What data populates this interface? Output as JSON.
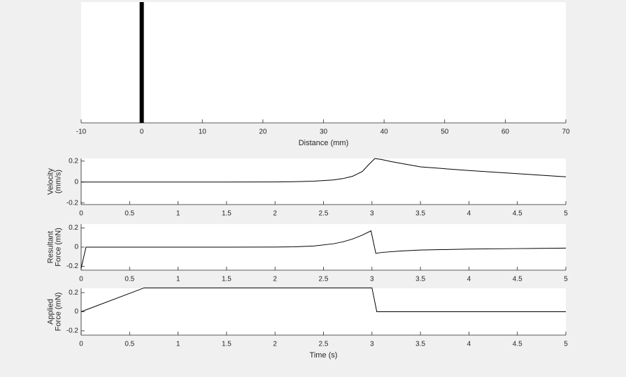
{
  "chart_data": [
    {
      "type": "position",
      "x": [
        0
      ],
      "color": "#000000",
      "xlabel": "Distance (mm)",
      "xlim": [
        -10,
        70
      ],
      "xticks": [
        -10,
        0,
        10,
        20,
        30,
        40,
        50,
        60,
        70
      ]
    },
    {
      "type": "line",
      "ylabel": [
        "Velocity",
        "(mm/s)"
      ],
      "x": [
        0,
        0.5,
        1,
        1.5,
        2,
        2.2,
        2.4,
        2.6,
        2.7,
        2.8,
        2.9,
        2.97,
        3.03,
        3.1,
        3.2,
        3.5,
        4,
        4.5,
        5
      ],
      "series": [
        {
          "color": "#000000",
          "values": [
            0,
            0,
            0,
            0,
            0.001,
            0.003,
            0.008,
            0.02,
            0.033,
            0.055,
            0.1,
            0.17,
            0.225,
            0.215,
            0.195,
            0.145,
            0.11,
            0.08,
            0.05
          ]
        }
      ],
      "xlim": [
        0,
        5
      ],
      "xticks": [
        0,
        0.5,
        1,
        1.5,
        2,
        2.5,
        3,
        3.5,
        4,
        4.5,
        5
      ],
      "ylim": [
        -0.215,
        0.225
      ],
      "yticks": [
        -0.2,
        0,
        0.2
      ]
    },
    {
      "type": "line",
      "ylabel": [
        "Resultant",
        "Force (mN)"
      ],
      "x": [
        0,
        0.05,
        0.5,
        1,
        1.5,
        2,
        2.2,
        2.4,
        2.6,
        2.7,
        2.8,
        2.9,
        2.99,
        3.04,
        3.1,
        3.3,
        3.5,
        4,
        4.5,
        5
      ],
      "series": [
        {
          "color": "#000000",
          "values": [
            -0.22,
            0,
            0,
            0,
            0,
            0.001,
            0.004,
            0.012,
            0.035,
            0.055,
            0.085,
            0.125,
            0.17,
            -0.065,
            -0.055,
            -0.04,
            -0.03,
            -0.02,
            -0.015,
            -0.01
          ]
        }
      ],
      "xlim": [
        0,
        5
      ],
      "xticks": [
        0,
        0.5,
        1,
        1.5,
        2,
        2.5,
        3,
        3.5,
        4,
        4.5,
        5
      ],
      "ylim": [
        -0.24,
        0.24
      ],
      "yticks": [
        -0.2,
        0,
        0.2
      ]
    },
    {
      "type": "line",
      "ylabel": [
        "Applied",
        "Force (mN)"
      ],
      "xlabel": "Time (s)",
      "x": [
        0,
        0.65,
        3,
        3.05,
        5
      ],
      "series": [
        {
          "color": "#000000",
          "values": [
            0,
            0.25,
            0.25,
            0,
            0
          ]
        }
      ],
      "xlim": [
        0,
        5
      ],
      "xticks": [
        0,
        0.5,
        1,
        1.5,
        2,
        2.5,
        3,
        3.5,
        4,
        4.5,
        5
      ],
      "ylim": [
        -0.245,
        0.245
      ],
      "yticks": [
        -0.2,
        0,
        0.2
      ]
    }
  ]
}
